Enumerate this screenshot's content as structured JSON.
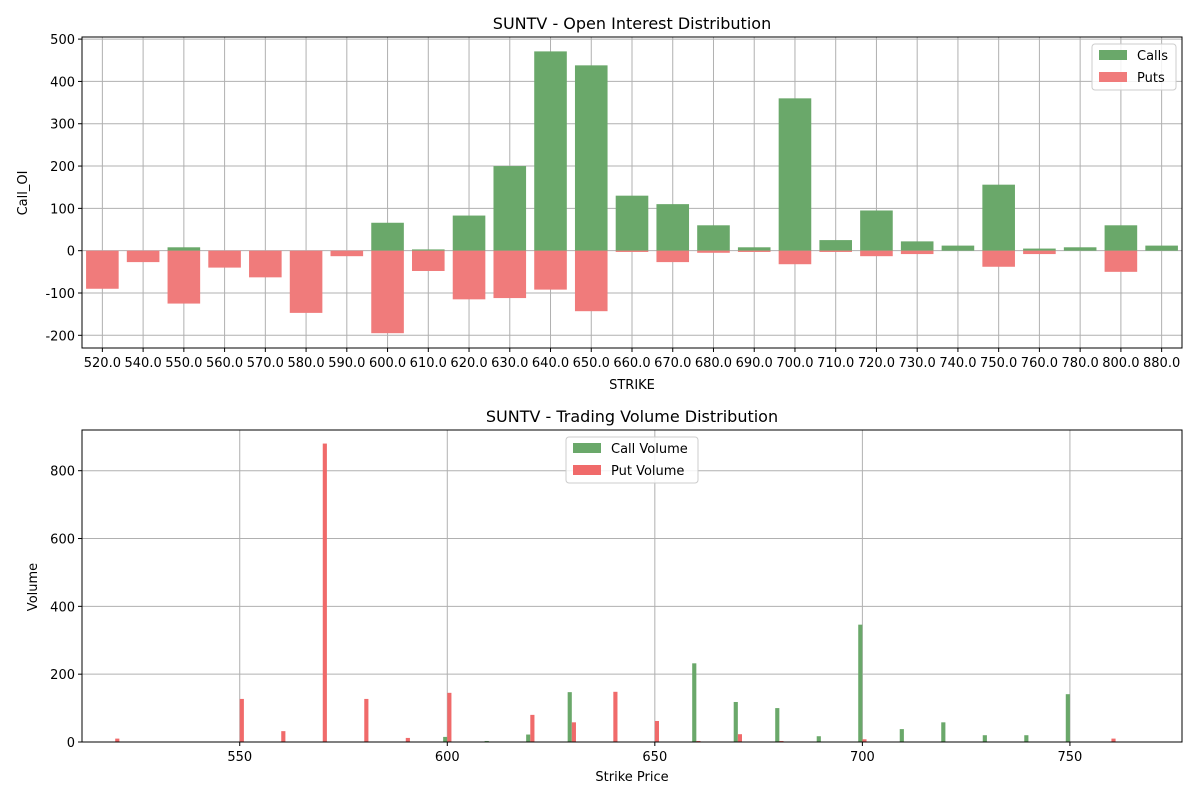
{
  "chart_data": [
    {
      "type": "bar",
      "title": "SUNTV - Open Interest Distribution",
      "xlabel": "STRIKE",
      "ylabel": "Call_OI",
      "ylim": [
        -230,
        505
      ],
      "yticks": [
        -200,
        -100,
        0,
        100,
        200,
        300,
        400,
        500
      ],
      "grid": true,
      "legend_position": "top-right",
      "categories": [
        "520.0",
        "540.0",
        "550.0",
        "560.0",
        "570.0",
        "580.0",
        "590.0",
        "600.0",
        "610.0",
        "620.0",
        "630.0",
        "640.0",
        "650.0",
        "660.0",
        "670.0",
        "680.0",
        "690.0",
        "700.0",
        "710.0",
        "720.0",
        "730.0",
        "740.0",
        "750.0",
        "760.0",
        "780.0",
        "800.0",
        "880.0"
      ],
      "series": [
        {
          "name": "Calls",
          "color": "#6aa86a",
          "values": [
            0,
            0,
            8,
            0,
            0,
            0,
            0,
            66,
            3,
            83,
            200,
            471,
            438,
            130,
            110,
            60,
            8,
            360,
            25,
            95,
            22,
            12,
            156,
            5,
            8,
            60,
            12
          ]
        },
        {
          "name": "Puts",
          "color": "#f07b7b",
          "values": [
            -90,
            -27,
            -125,
            -40,
            -63,
            -147,
            -13,
            -195,
            -48,
            -115,
            -112,
            -92,
            -143,
            -3,
            -27,
            -5,
            -3,
            -32,
            -3,
            -13,
            -8,
            0,
            -38,
            -8,
            0,
            -50,
            0
          ]
        }
      ]
    },
    {
      "type": "bar",
      "title": "SUNTV - Trading Volume Distribution",
      "xlabel": "Strike Price",
      "ylabel": "Volume",
      "xlim": [
        512,
        777
      ],
      "ylim": [
        0,
        920
      ],
      "xticks": [
        550,
        600,
        650,
        700,
        750
      ],
      "yticks": [
        0,
        200,
        400,
        600,
        800
      ],
      "grid": true,
      "legend_position": "top-center",
      "series": [
        {
          "name": "Call Volume",
          "color": "#6aa86a",
          "points": [
            [
              599.5,
              15
            ],
            [
              609.5,
              3
            ],
            [
              619.5,
              22
            ],
            [
              629.5,
              147
            ],
            [
              659.5,
              232
            ],
            [
              669.5,
              118
            ],
            [
              679.5,
              100
            ],
            [
              689.5,
              17
            ],
            [
              699.5,
              346
            ],
            [
              709.5,
              38
            ],
            [
              719.5,
              58
            ],
            [
              729.5,
              20
            ],
            [
              739.5,
              20
            ],
            [
              749.5,
              141
            ]
          ]
        },
        {
          "name": "Put Volume",
          "color": "#f06a6a",
          "points": [
            [
              520.5,
              10
            ],
            [
              550.5,
              127
            ],
            [
              560.5,
              32
            ],
            [
              570.5,
              880
            ],
            [
              580.5,
              127
            ],
            [
              590.5,
              12
            ],
            [
              600.5,
              145
            ],
            [
              620.5,
              80
            ],
            [
              630.5,
              58
            ],
            [
              640.5,
              148
            ],
            [
              650.5,
              62
            ],
            [
              660.5,
              3
            ],
            [
              670.5,
              23
            ],
            [
              680.5,
              3
            ],
            [
              700.5,
              8
            ],
            [
              760.5,
              10
            ]
          ]
        }
      ]
    }
  ]
}
